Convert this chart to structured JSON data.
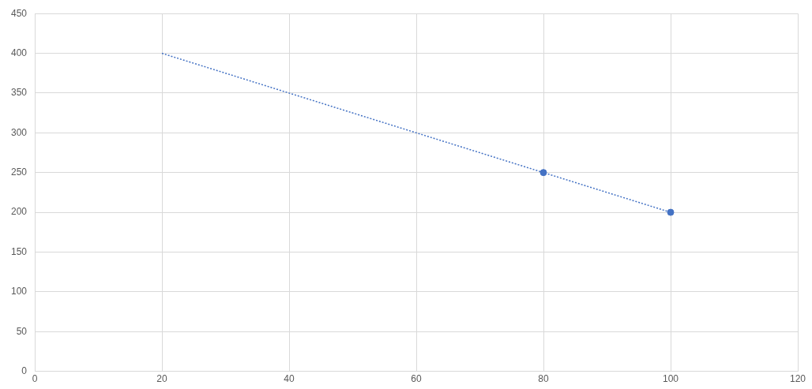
{
  "chart_data": {
    "type": "scatter",
    "xlim": [
      0,
      120
    ],
    "xticks": [
      0,
      20,
      40,
      60,
      80,
      100,
      120
    ],
    "ylim": [
      0,
      450
    ],
    "yticks": [
      0,
      50,
      100,
      150,
      200,
      250,
      300,
      350,
      400,
      450
    ],
    "grid": true,
    "marker": "circle",
    "series": [
      {
        "color": "#4472c4",
        "x": [
          80,
          100
        ],
        "values": [
          250,
          200
        ]
      },
      {
        "type": "line",
        "color": "#4472c4",
        "x": [
          20,
          100
        ],
        "values": [
          400,
          200
        ],
        "line_style": "dotted",
        "marker": "none"
      }
    ]
  }
}
